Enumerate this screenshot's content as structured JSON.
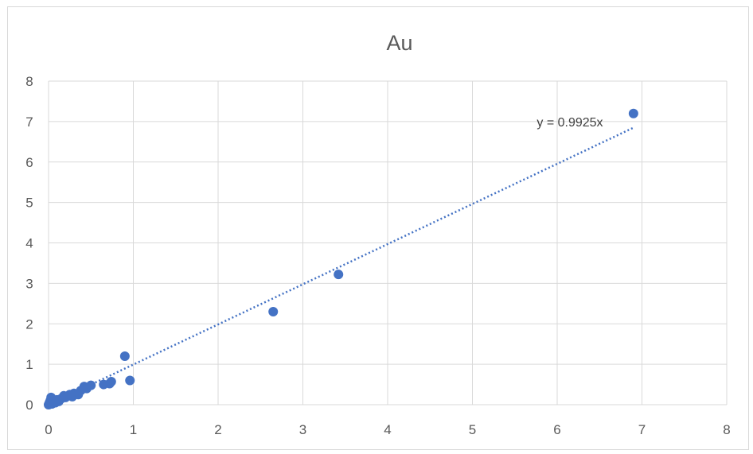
{
  "chart_data": {
    "type": "scatter",
    "title": "Au",
    "xlabel": "",
    "ylabel": "",
    "xlim": [
      0,
      8
    ],
    "ylim": [
      0,
      8
    ],
    "xticks": [
      0,
      1,
      2,
      3,
      4,
      5,
      6,
      7,
      8
    ],
    "yticks": [
      0,
      1,
      2,
      3,
      4,
      5,
      6,
      7,
      8
    ],
    "grid": true,
    "legend": "none",
    "color": "#4472c4",
    "series": [
      {
        "points": [
          {
            "x": 0.0,
            "y": 0.0
          },
          {
            "x": 0.01,
            "y": 0.05
          },
          {
            "x": 0.02,
            "y": 0.1
          },
          {
            "x": 0.03,
            "y": 0.18
          },
          {
            "x": 0.04,
            "y": 0.02
          },
          {
            "x": 0.05,
            "y": 0.08
          },
          {
            "x": 0.08,
            "y": 0.05
          },
          {
            "x": 0.1,
            "y": 0.12
          },
          {
            "x": 0.12,
            "y": 0.08
          },
          {
            "x": 0.15,
            "y": 0.15
          },
          {
            "x": 0.18,
            "y": 0.22
          },
          {
            "x": 0.2,
            "y": 0.18
          },
          {
            "x": 0.25,
            "y": 0.25
          },
          {
            "x": 0.28,
            "y": 0.2
          },
          {
            "x": 0.3,
            "y": 0.28
          },
          {
            "x": 0.35,
            "y": 0.25
          },
          {
            "x": 0.38,
            "y": 0.35
          },
          {
            "x": 0.42,
            "y": 0.45
          },
          {
            "x": 0.45,
            "y": 0.4
          },
          {
            "x": 0.5,
            "y": 0.48
          },
          {
            "x": 0.65,
            "y": 0.5
          },
          {
            "x": 0.72,
            "y": 0.52
          },
          {
            "x": 0.74,
            "y": 0.57
          },
          {
            "x": 0.9,
            "y": 1.2
          },
          {
            "x": 0.96,
            "y": 0.6
          },
          {
            "x": 2.65,
            "y": 2.3
          },
          {
            "x": 3.42,
            "y": 3.22
          },
          {
            "x": 6.9,
            "y": 7.2
          }
        ]
      }
    ],
    "trendline": {
      "type": "linear",
      "slope": 0.9925,
      "x_range": [
        0,
        6.9
      ],
      "label": "y = 0.9925x"
    }
  }
}
